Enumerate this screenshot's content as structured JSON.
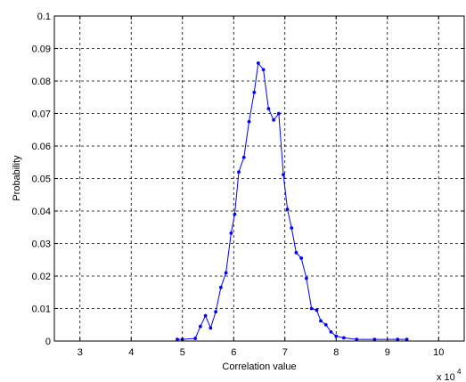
{
  "chart_data": {
    "type": "line",
    "title": "",
    "xlabel": "Correlation value",
    "ylabel": "Probability",
    "x_multiplier": {
      "base": "x 10",
      "exponent": "4"
    },
    "xlim": [
      2.5,
      10.5
    ],
    "ylim": [
      0,
      0.1
    ],
    "xticks": [
      3,
      4,
      5,
      6,
      7,
      8,
      9,
      10
    ],
    "yticks": [
      0,
      0.01,
      0.02,
      0.03,
      0.04,
      0.05,
      0.06,
      0.07,
      0.08,
      0.09,
      0.1
    ],
    "xtick_labels": [
      "3",
      "4",
      "5",
      "6",
      "7",
      "8",
      "9",
      "10"
    ],
    "ytick_labels": [
      "0",
      "0.01",
      "0.02",
      "0.03",
      "0.04",
      "0.05",
      "0.06",
      "0.07",
      "0.08",
      "0.09",
      "0.1"
    ],
    "grid": true,
    "grid_style": "dashed",
    "line_color": "#0000ff",
    "marker": "dot",
    "series": [
      {
        "x": [
          4.9,
          5.0,
          5.25,
          5.35,
          5.45,
          5.55,
          5.65,
          5.75,
          5.85,
          5.95,
          6.02,
          6.1,
          6.2,
          6.3,
          6.4,
          6.48,
          6.58,
          6.68,
          6.78,
          6.88,
          6.97,
          7.05,
          7.13,
          7.22,
          7.32,
          7.42,
          7.52,
          7.62,
          7.7,
          7.8,
          7.9,
          8.0,
          8.15,
          8.4,
          8.75,
          9.2,
          9.38
        ],
        "y": [
          0.0005,
          0.0005,
          0.0008,
          0.0045,
          0.0078,
          0.004,
          0.009,
          0.0165,
          0.021,
          0.0332,
          0.039,
          0.052,
          0.0565,
          0.0675,
          0.0765,
          0.0855,
          0.0835,
          0.0715,
          0.068,
          0.07,
          0.0512,
          0.0405,
          0.0348,
          0.0272,
          0.0255,
          0.0193,
          0.01,
          0.0095,
          0.0062,
          0.005,
          0.0028,
          0.0015,
          0.001,
          0.0005,
          0.0005,
          0.0005,
          0.0005
        ]
      }
    ]
  }
}
